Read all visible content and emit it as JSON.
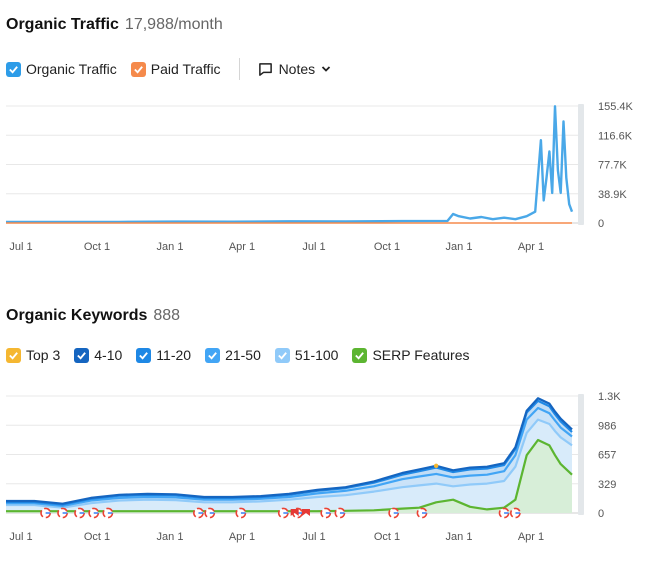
{
  "traffic": {
    "title": "Organic Traffic",
    "metric": "17,988/month",
    "legend": [
      {
        "label": "Organic Traffic",
        "color": "#2d9ce8"
      },
      {
        "label": "Paid Traffic",
        "color": "#f58a4b"
      }
    ],
    "notes_label": "Notes"
  },
  "keywords": {
    "title": "Organic Keywords",
    "metric": "888",
    "legend": [
      {
        "label": "Top 3",
        "color": "#f5b731"
      },
      {
        "label": "4-10",
        "color": "#1565c0"
      },
      {
        "label": "11-20",
        "color": "#1e88e5"
      },
      {
        "label": "21-50",
        "color": "#42a5f5"
      },
      {
        "label": "51-100",
        "color": "#90caf9"
      },
      {
        "label": "SERP Features",
        "color": "#5cb531"
      }
    ]
  },
  "chart_data": [
    {
      "type": "line",
      "title": "Organic Traffic",
      "x_ticks": [
        "Jul 1",
        "Oct 1",
        "Jan 1",
        "Apr 1",
        "Jul 1",
        "Oct 1",
        "Jan 1",
        "Apr 1"
      ],
      "y_ticks": [
        "155.4K",
        "116.6K",
        "77.7K",
        "38.9K",
        "0"
      ],
      "ylim": [
        0,
        155400
      ],
      "grid": true,
      "series": [
        {
          "name": "Organic Traffic",
          "color": "#4aa8e8",
          "x": [
            0,
            0.1,
            0.2,
            0.3,
            0.4,
            0.5,
            0.6,
            0.7,
            0.78,
            0.79,
            0.8,
            0.82,
            0.84,
            0.86,
            0.88,
            0.9,
            0.92,
            0.935,
            0.945,
            0.95,
            0.955,
            0.96,
            0.965,
            0.97,
            0.975,
            0.98,
            0.985,
            0.99,
            0.995,
            1.0
          ],
          "y": [
            1500,
            1500,
            1400,
            1800,
            1700,
            2200,
            2000,
            2500,
            2800,
            12000,
            9000,
            6000,
            8000,
            5000,
            7000,
            5000,
            9000,
            15000,
            110000,
            30000,
            60000,
            95000,
            40000,
            155000,
            70000,
            40000,
            135000,
            60000,
            25000,
            15000
          ]
        },
        {
          "name": "Paid Traffic",
          "color": "#f58a4b",
          "x": [
            0,
            1
          ],
          "y": [
            0,
            0
          ]
        }
      ]
    },
    {
      "type": "area",
      "title": "Organic Keywords",
      "x_ticks": [
        "Jul 1",
        "Oct 1",
        "Jan 1",
        "Apr 1",
        "Jul 1",
        "Oct 1",
        "Jan 1",
        "Apr 1"
      ],
      "y_ticks": [
        "1.3K",
        "986",
        "657",
        "329",
        "0"
      ],
      "ylim": [
        0,
        1315
      ],
      "grid": true,
      "x": [
        0,
        0.05,
        0.1,
        0.15,
        0.2,
        0.25,
        0.3,
        0.35,
        0.4,
        0.45,
        0.5,
        0.55,
        0.6,
        0.65,
        0.7,
        0.73,
        0.76,
        0.79,
        0.82,
        0.85,
        0.88,
        0.9,
        0.92,
        0.94,
        0.96,
        0.97,
        0.98,
        1.0
      ],
      "series": [
        {
          "name": "SERP Features",
          "color": "#5cb531",
          "values": [
            20,
            20,
            20,
            20,
            20,
            20,
            20,
            20,
            20,
            20,
            20,
            20,
            25,
            30,
            50,
            60,
            120,
            150,
            70,
            40,
            60,
            150,
            650,
            820,
            760,
            650,
            550,
            430
          ]
        },
        {
          "name": "51-100",
          "color": "#90caf9",
          "values": [
            90,
            90,
            60,
            110,
            140,
            150,
            145,
            120,
            120,
            130,
            150,
            180,
            200,
            240,
            290,
            310,
            330,
            300,
            320,
            330,
            360,
            520,
            900,
            1050,
            1000,
            920,
            850,
            760
          ]
        },
        {
          "name": "21-50",
          "color": "#42a5f5",
          "values": [
            110,
            110,
            80,
            140,
            170,
            180,
            175,
            150,
            150,
            160,
            180,
            220,
            250,
            300,
            380,
            410,
            440,
            400,
            420,
            430,
            470,
            650,
            1050,
            1180,
            1120,
            1040,
            960,
            860
          ]
        },
        {
          "name": "11-20",
          "color": "#1e88e5",
          "values": [
            125,
            125,
            95,
            160,
            195,
            205,
            200,
            170,
            170,
            180,
            205,
            250,
            280,
            340,
            430,
            470,
            510,
            460,
            490,
            500,
            540,
            720,
            1130,
            1260,
            1200,
            1110,
            1030,
            910
          ]
        },
        {
          "name": "4-10",
          "color": "#1565c0",
          "values": [
            135,
            135,
            105,
            170,
            205,
            215,
            210,
            180,
            180,
            190,
            215,
            260,
            290,
            355,
            450,
            490,
            530,
            480,
            510,
            520,
            560,
            740,
            1150,
            1290,
            1230,
            1140,
            1060,
            940
          ]
        },
        {
          "name": "Top 3",
          "color": "#f5b731",
          "values": [
            0,
            0,
            0,
            0,
            0,
            0,
            0,
            0,
            0,
            0,
            0,
            0,
            0,
            0,
            0,
            0,
            530,
            0,
            0,
            0,
            0,
            0,
            0,
            0,
            0,
            0,
            0,
            0
          ]
        }
      ],
      "serp_icons": {
        "g_positions": [
          0.07,
          0.1,
          0.13,
          0.155,
          0.18,
          0.34,
          0.36,
          0.415,
          0.49,
          0.515,
          0.565,
          0.59,
          0.685,
          0.735,
          0.88,
          0.9
        ],
        "flag_positions": [
          0.51,
          0.53
        ]
      }
    }
  ]
}
